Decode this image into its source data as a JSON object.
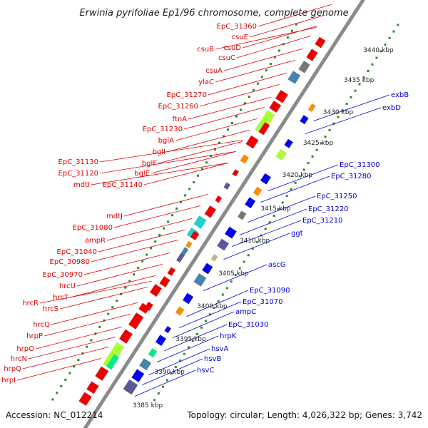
{
  "header": {
    "title": "Erwinia pyrifoliae Ep1/96 chromosome, complete genome"
  },
  "footer": {
    "accession": "Accession: NC_012214",
    "summary": "Topology: circular; Length: 4,026,322 bp; Genes: 3,742"
  },
  "colors": {
    "forward_label": "#dd0000",
    "reverse_label": "#0000dd",
    "backbone": "#8a8a8a",
    "tick_dot": "#2a8a2a",
    "cds_forward": "#ee0000",
    "cds_reverse": "#0000ee",
    "cog_orange": "#ff8c00",
    "cog_lime": "#aaff33",
    "cog_cyan": "#20d0d0",
    "cog_steel": "#4682b4",
    "cog_slate": "#5a5a9a",
    "cog_gray": "#777777",
    "cog_olive": "#bbbb88",
    "cog_green": "#00ee88"
  },
  "ticks": [
    "3385 kbp",
    "3390 kbp",
    "3395 kbp",
    "3400 kbp",
    "3405 kbp",
    "3410 kbp",
    "3415 kbp",
    "3420 kbp",
    "3425 kbp",
    "3430 kbp",
    "3435 kbp",
    "3440 kbp"
  ],
  "forward_labels": [
    "EpC_31360",
    "csuE",
    "csuD",
    "csuB",
    "csuC",
    "csuA",
    "ylaC",
    "EpC_31270",
    "EpC_31260",
    "ftnA",
    "EpC_31230",
    "bglA",
    "bglI",
    "bglF",
    "bglE",
    "EpC_31130",
    "EpC_31120",
    "EpC_31140",
    "mdtI",
    "mdtJ",
    "EpC_31080",
    "ampR",
    "EpC_31040",
    "EpC_30980",
    "EpC_30970",
    "hrcU",
    "hrcT",
    "hrcR",
    "hrcS",
    "hrcQ",
    "hrpP",
    "hrpO",
    "hrcN",
    "hrpQ",
    "hrpI"
  ],
  "reverse_labels": [
    "exbB",
    "exbD",
    "EpC_31300",
    "EpC_31280",
    "EpC_31250",
    "EpC_31220",
    "EpC_31210",
    "ggt",
    "ascG",
    "EpC_31090",
    "EpC_31070",
    "ampC",
    "EpC_31030",
    "hrpK",
    "hsvA",
    "hsvB",
    "hsvC"
  ]
}
